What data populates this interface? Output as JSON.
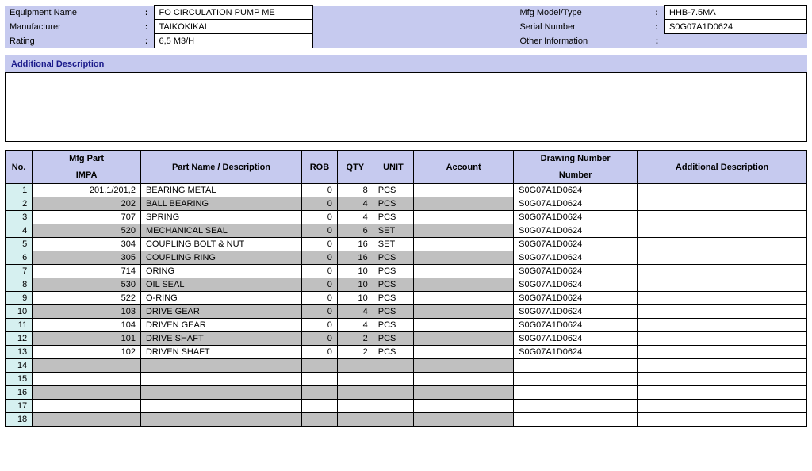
{
  "header": {
    "fields": [
      {
        "label": "Equipment Name",
        "value": "FO CIRCULATION PUMP ME",
        "label2": "Mfg Model/Type",
        "value2": "HHB-7.5MA"
      },
      {
        "label": "Manufacturer",
        "value": "TAIKOKIKAI",
        "label2": "Serial Number",
        "value2": "S0G07A1D0624"
      },
      {
        "label": "Rating",
        "value": "6,5 M3/H",
        "label2": "Other Information",
        "value2": ""
      }
    ]
  },
  "section_title": "Additional Description",
  "columns": {
    "no": "No.",
    "mfg": "Mfg Part",
    "impa": "IMPA",
    "name": "Part Name / Description",
    "rob": "ROB",
    "qty": "QTY",
    "unit": "UNIT",
    "account": "Account",
    "drawing1": "Drawing Number",
    "drawing2": "Number",
    "adesc": "Additional Description"
  },
  "rows": [
    {
      "no": "1",
      "mfg": "201,1/201,2",
      "name": "BEARING METAL",
      "rob": "0",
      "qty": "8",
      "unit": "PCS",
      "acct": "",
      "draw": "S0G07A1D0624",
      "adesc": ""
    },
    {
      "no": "2",
      "mfg": "202",
      "name": "BALL BEARING",
      "rob": "0",
      "qty": "4",
      "unit": "PCS",
      "acct": "",
      "draw": "S0G07A1D0624",
      "adesc": ""
    },
    {
      "no": "3",
      "mfg": "707",
      "name": "SPRING",
      "rob": "0",
      "qty": "4",
      "unit": "PCS",
      "acct": "",
      "draw": "S0G07A1D0624",
      "adesc": ""
    },
    {
      "no": "4",
      "mfg": "520",
      "name": "MECHANICAL SEAL",
      "rob": "0",
      "qty": "6",
      "unit": "SET",
      "acct": "",
      "draw": "S0G07A1D0624",
      "adesc": ""
    },
    {
      "no": "5",
      "mfg": "304",
      "name": "COUPLING BOLT & NUT",
      "rob": "0",
      "qty": "16",
      "unit": "SET",
      "acct": "",
      "draw": "S0G07A1D0624",
      "adesc": ""
    },
    {
      "no": "6",
      "mfg": "305",
      "name": "COUPLING RING",
      "rob": "0",
      "qty": "16",
      "unit": "PCS",
      "acct": "",
      "draw": "S0G07A1D0624",
      "adesc": ""
    },
    {
      "no": "7",
      "mfg": "714",
      "name": "ORING",
      "rob": "0",
      "qty": "10",
      "unit": "PCS",
      "acct": "",
      "draw": "S0G07A1D0624",
      "adesc": ""
    },
    {
      "no": "8",
      "mfg": "530",
      "name": "OIL SEAL",
      "rob": "0",
      "qty": "10",
      "unit": "PCS",
      "acct": "",
      "draw": "S0G07A1D0624",
      "adesc": ""
    },
    {
      "no": "9",
      "mfg": "522",
      "name": "O-RING",
      "rob": "0",
      "qty": "10",
      "unit": "PCS",
      "acct": "",
      "draw": "S0G07A1D0624",
      "adesc": ""
    },
    {
      "no": "10",
      "mfg": "103",
      "name": "DRIVE GEAR",
      "rob": "0",
      "qty": "4",
      "unit": "PCS",
      "acct": "",
      "draw": "S0G07A1D0624",
      "adesc": ""
    },
    {
      "no": "11",
      "mfg": "104",
      "name": "DRIVEN GEAR",
      "rob": "0",
      "qty": "4",
      "unit": "PCS",
      "acct": "",
      "draw": "S0G07A1D0624",
      "adesc": ""
    },
    {
      "no": "12",
      "mfg": "101",
      "name": "DRIVE SHAFT",
      "rob": "0",
      "qty": "2",
      "unit": "PCS",
      "acct": "",
      "draw": "S0G07A1D0624",
      "adesc": ""
    },
    {
      "no": "13",
      "mfg": "102",
      "name": "DRIVEN SHAFT",
      "rob": "0",
      "qty": "2",
      "unit": "PCS",
      "acct": "",
      "draw": "S0G07A1D0624",
      "adesc": ""
    },
    {
      "no": "14",
      "mfg": "",
      "name": "",
      "rob": "",
      "qty": "",
      "unit": "",
      "acct": "",
      "draw": "",
      "adesc": ""
    },
    {
      "no": "15",
      "mfg": "",
      "name": "",
      "rob": "",
      "qty": "",
      "unit": "",
      "acct": "",
      "draw": "",
      "adesc": ""
    },
    {
      "no": "16",
      "mfg": "",
      "name": "",
      "rob": "",
      "qty": "",
      "unit": "",
      "acct": "",
      "draw": "",
      "adesc": ""
    },
    {
      "no": "17",
      "mfg": "",
      "name": "",
      "rob": "",
      "qty": "",
      "unit": "",
      "acct": "",
      "draw": "",
      "adesc": ""
    },
    {
      "no": "18",
      "mfg": "",
      "name": "",
      "rob": "",
      "qty": "",
      "unit": "",
      "acct": "",
      "draw": "",
      "adesc": ""
    }
  ]
}
